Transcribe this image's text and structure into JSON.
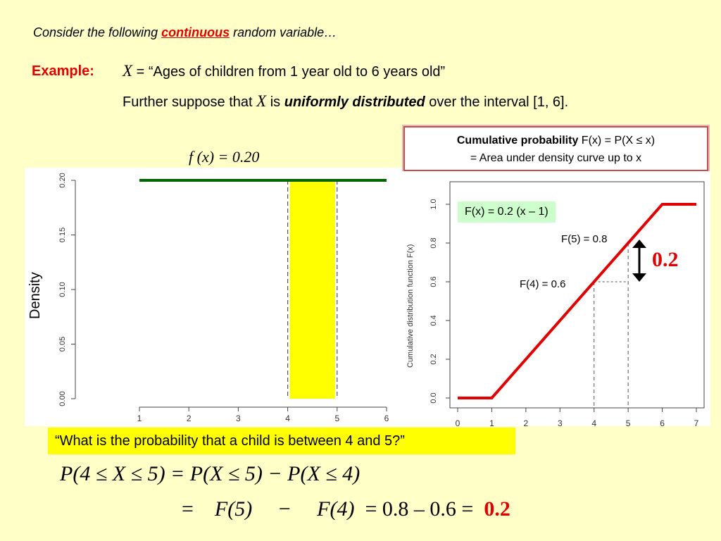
{
  "intro": {
    "before": "Consider the following ",
    "highlight": "continuous",
    "after": " random variable…"
  },
  "example": {
    "label": "Example:",
    "var": "X",
    "equals_text": " = “Ages of children from 1 year old to 6 years old”",
    "line2_before": "Further suppose that ",
    "line2_var": "X",
    "line2_is": " is ",
    "line2_emph": "uniformly distributed",
    "line2_after": " over the interval [1, 6]."
  },
  "cum_box": {
    "bold": "Cumulative probability",
    "formula": " F(x) = P(X ≤ x)",
    "line2": "= Area under density curve up to x"
  },
  "density_formula": "f (x) = 0.20",
  "density_chart": {
    "ylabel": "Density",
    "xticks": [
      "1",
      "2",
      "3",
      "4",
      "5",
      "6"
    ],
    "yticks": [
      "0.00",
      "0.05",
      "0.10",
      "0.15",
      "0.20"
    ]
  },
  "cdf_chart": {
    "ylabel": "Cumulative distribution function F(x)",
    "xticks": [
      "0",
      "1",
      "2",
      "3",
      "4",
      "5",
      "6",
      "7"
    ],
    "yticks": [
      "0.0",
      "0.2",
      "0.4",
      "0.6",
      "0.8",
      "1.0"
    ],
    "formula_box": "F(x) = 0.2 (x – 1)",
    "label_f5": "F(5) = 0.8",
    "label_f4": "F(4) = 0.6",
    "diff_label": "0.2"
  },
  "question": "“What is the probability that a child is between 4 and 5?”",
  "equation1": "P(4 ≤ X ≤ 5) = P(X ≤ 5) − P(X ≤ 4)",
  "equation2": {
    "eq": "=",
    "f5": "F(5)",
    "minus": "−",
    "f4": "F(4)",
    "rest": "=  0.8 – 0.6  =",
    "result": "0.2"
  },
  "colors": {
    "accent_red": "#e00000",
    "density_line": "#006400",
    "highlight_fill": "#ffff00",
    "cdf_line": "#e00000",
    "box_green": "#ccffcc"
  },
  "chart_data": [
    {
      "type": "line",
      "name": "density",
      "x": [
        1,
        6
      ],
      "y": [
        0.2,
        0.2
      ],
      "shaded_interval": [
        4,
        5
      ],
      "xlim": [
        1,
        6
      ],
      "ylim": [
        0,
        0.2
      ],
      "ylabel": "Density",
      "grid": false
    },
    {
      "type": "line",
      "name": "cdf",
      "x": [
        0,
        1,
        6,
        7
      ],
      "y": [
        0,
        0,
        1,
        1
      ],
      "xlim": [
        0,
        7
      ],
      "ylim": [
        0,
        1
      ],
      "ylabel": "Cumulative distribution function F(x)",
      "reference_points": [
        {
          "x": 4,
          "y": 0.6
        },
        {
          "x": 5,
          "y": 0.8
        }
      ],
      "grid": false
    }
  ]
}
